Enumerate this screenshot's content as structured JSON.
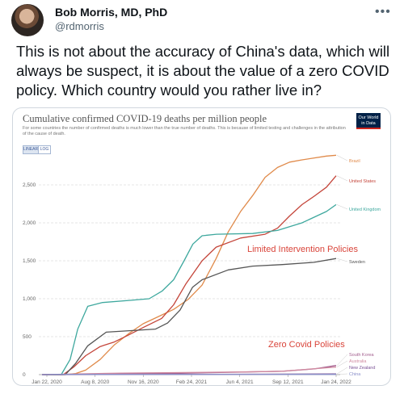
{
  "author": {
    "name": "Bob Morris, MD, PhD",
    "handle": "@rdmorris"
  },
  "more_icon": "more-horizontal-icon",
  "tweet": {
    "text": "This is not about the accuracy of China's data, which will always be suspect, it is about the value of a zero COVID policy. Which country would you rather live in?"
  },
  "chart": {
    "logo": "Our World in Data",
    "scale_buttons": {
      "linear": "LINEAR",
      "log": "LOG"
    },
    "annotations": {
      "limited": "Limited Intervention Policies",
      "zero": "Zero Covid Policies"
    }
  },
  "chart_data": {
    "type": "line",
    "title": "Cumulative confirmed COVID-19 deaths per million people",
    "subtitle": "For some countries the number of confirmed deaths is much lower than the true number of deaths. This is because of limited testing and challenges in the attribution of the cause of death.",
    "xlabel": "",
    "ylabel": "",
    "x_ticks": [
      "Jan 22, 2020",
      "Aug 8, 2020",
      "Nov 16, 2020",
      "Feb 24, 2021",
      "Jun 4, 2021",
      "Sep 12, 2021",
      "Jan 24, 2022"
    ],
    "x_range": [
      "2020-01-22",
      "2022-01-24"
    ],
    "ylim": [
      0,
      3000
    ],
    "y_ticks": [
      0,
      500,
      1000,
      1500,
      2000,
      2500
    ],
    "y_tick_labels": [
      "0",
      "500",
      "1,000",
      "1,500",
      "2,000",
      "2,500"
    ],
    "grid": "horizontal dashed",
    "series": [
      {
        "name": "Brazil",
        "color": "#e08a4a",
        "x": [
          "2020-01-22",
          "2020-03-20",
          "2020-04-15",
          "2020-05-10",
          "2020-06-15",
          "2020-07-20",
          "2020-08-25",
          "2020-09-30",
          "2020-11-05",
          "2020-12-15",
          "2021-01-20",
          "2021-02-24",
          "2021-03-31",
          "2021-04-30",
          "2021-05-31",
          "2021-06-30",
          "2021-07-31",
          "2021-08-31",
          "2021-09-30",
          "2021-10-31",
          "2021-12-31",
          "2022-01-24"
        ],
        "y": [
          0,
          0,
          15,
          60,
          200,
          390,
          540,
          670,
          760,
          860,
          990,
          1180,
          1530,
          1880,
          2150,
          2360,
          2600,
          2730,
          2800,
          2830,
          2880,
          2890
        ]
      },
      {
        "name": "United States",
        "color": "#c4453a",
        "x": [
          "2020-01-22",
          "2020-03-15",
          "2020-04-10",
          "2020-05-10",
          "2020-06-15",
          "2020-07-20",
          "2020-08-20",
          "2020-09-30",
          "2020-11-15",
          "2020-12-15",
          "2021-01-15",
          "2021-02-24",
          "2021-03-31",
          "2021-05-31",
          "2021-07-31",
          "2021-08-31",
          "2021-09-30",
          "2021-10-31",
          "2021-11-30",
          "2021-12-31",
          "2022-01-24"
        ],
        "y": [
          0,
          0,
          100,
          250,
          370,
          430,
          510,
          620,
          740,
          920,
          1200,
          1500,
          1680,
          1800,
          1850,
          1930,
          2090,
          2240,
          2350,
          2470,
          2620
        ]
      },
      {
        "name": "United Kingdom",
        "color": "#3ea89e",
        "x": [
          "2020-01-22",
          "2020-03-10",
          "2020-04-01",
          "2020-04-20",
          "2020-05-15",
          "2020-06-20",
          "2020-09-01",
          "2020-10-15",
          "2020-11-16",
          "2020-12-15",
          "2021-01-10",
          "2021-02-01",
          "2021-02-24",
          "2021-04-01",
          "2021-06-30",
          "2021-08-31",
          "2021-10-31",
          "2021-12-31",
          "2022-01-24"
        ],
        "y": [
          0,
          0,
          200,
          600,
          900,
          950,
          980,
          1000,
          1100,
          1250,
          1500,
          1720,
          1830,
          1850,
          1860,
          1900,
          2000,
          2150,
          2240
        ]
      },
      {
        "name": "Sweden",
        "color": "#555555",
        "x": [
          "2020-01-22",
          "2020-03-20",
          "2020-04-15",
          "2020-05-15",
          "2020-06-30",
          "2020-08-31",
          "2020-10-31",
          "2020-11-30",
          "2020-12-31",
          "2021-01-31",
          "2021-02-24",
          "2021-04-30",
          "2021-06-30",
          "2021-09-12",
          "2021-11-30",
          "2022-01-24"
        ],
        "y": [
          0,
          0,
          150,
          380,
          560,
          580,
          600,
          680,
          850,
          1150,
          1250,
          1380,
          1430,
          1450,
          1480,
          1530
        ]
      },
      {
        "name": "South Korea",
        "color": "#a35f8f",
        "x": [
          "2020-01-22",
          "2021-01-01",
          "2021-09-12",
          "2021-12-01",
          "2022-01-24"
        ],
        "y": [
          0,
          18,
          45,
          75,
          120
        ]
      },
      {
        "name": "Australia",
        "color": "#d08aa0",
        "x": [
          "2020-01-22",
          "2020-08-08",
          "2021-06-04",
          "2021-09-12",
          "2022-01-24"
        ],
        "y": [
          0,
          20,
          35,
          45,
          100
        ]
      },
      {
        "name": "New Zealand",
        "color": "#7a5195",
        "x": [
          "2020-01-22",
          "2021-06-04",
          "2022-01-24"
        ],
        "y": [
          0,
          5,
          10
        ]
      },
      {
        "name": "China",
        "color": "#8a8fc9",
        "x": [
          "2020-01-22",
          "2020-03-01",
          "2022-01-24"
        ],
        "y": [
          0,
          3,
          3
        ]
      }
    ]
  }
}
